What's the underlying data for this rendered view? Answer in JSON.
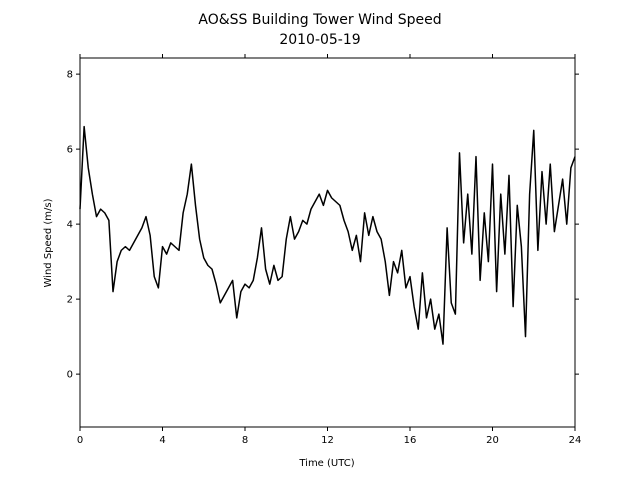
{
  "chart_data": {
    "type": "line",
    "title": "AO&SS Building Tower Wind Speed",
    "subtitle": "2010-05-19",
    "x_label": "Time (UTC)",
    "y_label": "Wind Speed (m/s)",
    "x": [
      0,
      0.2,
      0.4,
      0.6,
      0.8,
      1,
      1.2,
      1.4,
      1.6,
      1.8,
      2,
      2.2,
      2.4,
      2.6,
      2.8,
      3,
      3.2,
      3.4,
      3.6,
      3.8,
      4,
      4.2,
      4.4,
      4.6,
      4.8,
      5,
      5.2,
      5.4,
      5.6,
      5.8,
      6,
      6.2,
      6.4,
      6.6,
      6.8,
      7,
      7.2,
      7.4,
      7.6,
      7.8,
      8,
      8.2,
      8.4,
      8.6,
      8.8,
      9,
      9.2,
      9.4,
      9.6,
      9.8,
      10,
      10.2,
      10.4,
      10.6,
      10.8,
      11,
      11.2,
      11.4,
      11.6,
      11.8,
      12,
      12.2,
      12.4,
      12.6,
      12.8,
      13,
      13.2,
      13.4,
      13.6,
      13.8,
      14,
      14.2,
      14.4,
      14.6,
      14.8,
      15,
      15.2,
      15.4,
      15.6,
      15.8,
      16,
      16.2,
      16.4,
      16.6,
      16.8,
      17,
      17.2,
      17.4,
      17.6,
      17.8,
      18,
      18.2,
      18.4,
      18.6,
      18.8,
      19,
      19.2,
      19.4,
      19.6,
      19.8,
      20,
      20.2,
      20.4,
      20.6,
      20.8,
      21,
      21.2,
      21.4,
      21.6,
      21.8,
      22,
      22.2,
      22.4,
      22.6,
      22.8,
      23,
      23.2,
      23.4,
      23.6,
      23.8,
      24
    ],
    "series": [
      {
        "name": "Wind Speed",
        "color": "#000000",
        "values": [
          4.4,
          6.6,
          5.5,
          4.8,
          4.2,
          4.4,
          4.3,
          4.1,
          2.2,
          3.0,
          3.3,
          3.4,
          3.3,
          3.5,
          3.7,
          3.9,
          4.2,
          3.7,
          2.6,
          2.3,
          3.4,
          3.2,
          3.5,
          3.4,
          3.3,
          4.3,
          4.8,
          5.6,
          4.5,
          3.6,
          3.1,
          2.9,
          2.8,
          2.4,
          1.9,
          2.1,
          2.3,
          2.5,
          1.5,
          2.2,
          2.4,
          2.3,
          2.5,
          3.1,
          3.9,
          2.8,
          2.4,
          2.9,
          2.5,
          2.6,
          3.6,
          4.2,
          3.6,
          3.8,
          4.1,
          4.0,
          4.4,
          4.6,
          4.8,
          4.5,
          4.9,
          4.7,
          4.6,
          4.5,
          4.1,
          3.8,
          3.3,
          3.7,
          3.0,
          4.3,
          3.7,
          4.2,
          3.8,
          3.6,
          3.0,
          2.1,
          3.0,
          2.7,
          3.3,
          2.3,
          2.6,
          1.8,
          1.2,
          2.7,
          1.5,
          2.0,
          1.2,
          1.6,
          0.8,
          3.9,
          1.9,
          1.6,
          5.9,
          3.5,
          4.8,
          3.2,
          5.8,
          2.5,
          4.3,
          3.0,
          5.6,
          2.2,
          4.8,
          3.2,
          5.3,
          1.8,
          4.5,
          3.4,
          1.0,
          4.8,
          6.5,
          3.3,
          5.4,
          4.0,
          5.6,
          3.8,
          4.5,
          5.2,
          4.0,
          5.5,
          5.8
        ]
      }
    ],
    "xlim": [
      0,
      24
    ],
    "xticks": [
      0,
      4,
      8,
      12,
      16,
      20,
      24
    ],
    "ylim": [
      -1.41,
      8.43
    ],
    "yticks": [
      0,
      2,
      4,
      6,
      8
    ],
    "grid": false
  }
}
